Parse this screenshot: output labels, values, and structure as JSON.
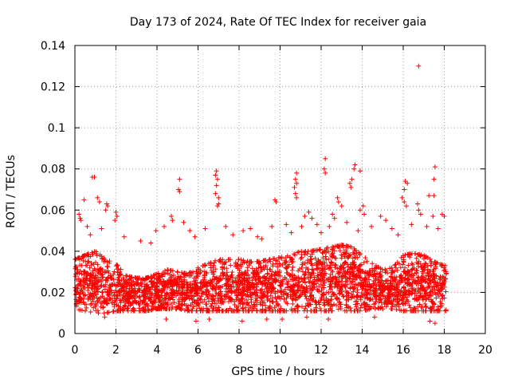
{
  "chart_data": {
    "type": "scatter",
    "title": "Day 173 of 2024, Rate Of TEC Index for receiver gaia",
    "xlabel": "GPS time / hours",
    "ylabel": "ROTI / TECUs",
    "xlim": [
      0,
      20
    ],
    "ylim": [
      0,
      0.14
    ],
    "xticks": [
      0,
      2,
      4,
      6,
      8,
      10,
      12,
      14,
      16,
      18,
      20
    ],
    "yticks": [
      0,
      0.02,
      0.04,
      0.06,
      0.08,
      0.1,
      0.12,
      0.14
    ],
    "xtick_labels": [
      "0",
      "2",
      "4",
      "6",
      "8",
      "10",
      "12",
      "14",
      "16",
      "18",
      "20"
    ],
    "ytick_labels": [
      "0",
      "0.02",
      "0.04",
      "0.06",
      "0.08",
      "0.1",
      "0.12",
      "0.14"
    ],
    "grid": true,
    "legend": "none",
    "marker": "+",
    "color": "#ff0000",
    "data_extent_x": [
      0,
      18.1
    ],
    "band_envelope": {
      "x": [
        0,
        0.5,
        1,
        1.5,
        2,
        2.5,
        3,
        3.5,
        4,
        4.5,
        5,
        5.5,
        6,
        6.5,
        7,
        7.5,
        8,
        8.5,
        9,
        9.5,
        10,
        10.5,
        11,
        11.5,
        12,
        12.5,
        13,
        13.5,
        14,
        14.5,
        15,
        15.5,
        16,
        16.5,
        17,
        17.5,
        18
      ],
      "low": [
        0.012,
        0.011,
        0.01,
        0.01,
        0.011,
        0.011,
        0.011,
        0.011,
        0.012,
        0.012,
        0.012,
        0.011,
        0.011,
        0.011,
        0.011,
        0.011,
        0.011,
        0.011,
        0.011,
        0.011,
        0.011,
        0.011,
        0.011,
        0.011,
        0.011,
        0.011,
        0.011,
        0.011,
        0.011,
        0.012,
        0.012,
        0.012,
        0.011,
        0.011,
        0.011,
        0.011,
        0.011
      ],
      "high": [
        0.036,
        0.038,
        0.04,
        0.036,
        0.034,
        0.028,
        0.027,
        0.027,
        0.029,
        0.031,
        0.03,
        0.029,
        0.032,
        0.034,
        0.036,
        0.036,
        0.036,
        0.035,
        0.035,
        0.036,
        0.037,
        0.038,
        0.04,
        0.04,
        0.041,
        0.042,
        0.043,
        0.042,
        0.038,
        0.034,
        0.031,
        0.032,
        0.038,
        0.039,
        0.038,
        0.035,
        0.033
      ]
    },
    "points": [
      {
        "x": 16.75,
        "y": 0.13
      },
      {
        "x": 12.2,
        "y": 0.085
      },
      {
        "x": 12.15,
        "y": 0.08
      },
      {
        "x": 12.2,
        "y": 0.078
      },
      {
        "x": 13.65,
        "y": 0.082
      },
      {
        "x": 13.6,
        "y": 0.08
      },
      {
        "x": 13.9,
        "y": 0.079
      },
      {
        "x": 17.55,
        "y": 0.081
      },
      {
        "x": 17.5,
        "y": 0.075
      },
      {
        "x": 6.9,
        "y": 0.079
      },
      {
        "x": 6.85,
        "y": 0.077
      },
      {
        "x": 6.95,
        "y": 0.075
      },
      {
        "x": 6.9,
        "y": 0.072
      },
      {
        "x": 10.8,
        "y": 0.078
      },
      {
        "x": 10.75,
        "y": 0.075
      },
      {
        "x": 10.8,
        "y": 0.073
      },
      {
        "x": 0.85,
        "y": 0.076
      },
      {
        "x": 0.95,
        "y": 0.076
      },
      {
        "x": 5.1,
        "y": 0.075
      },
      {
        "x": 5.05,
        "y": 0.07
      },
      {
        "x": 5.1,
        "y": 0.069
      },
      {
        "x": 16.1,
        "y": 0.074
      },
      {
        "x": 16.2,
        "y": 0.073
      },
      {
        "x": 16.05,
        "y": 0.07
      },
      {
        "x": 13.4,
        "y": 0.073
      },
      {
        "x": 13.45,
        "y": 0.071
      },
      {
        "x": 13.5,
        "y": 0.075
      },
      {
        "x": 10.7,
        "y": 0.071
      },
      {
        "x": 10.75,
        "y": 0.068
      },
      {
        "x": 10.8,
        "y": 0.066
      },
      {
        "x": 6.85,
        "y": 0.068
      },
      {
        "x": 7.0,
        "y": 0.066
      },
      {
        "x": 7.0,
        "y": 0.063
      },
      {
        "x": 6.95,
        "y": 0.062
      },
      {
        "x": 17.25,
        "y": 0.067
      },
      {
        "x": 17.5,
        "y": 0.067
      },
      {
        "x": 1.1,
        "y": 0.066
      },
      {
        "x": 1.2,
        "y": 0.064
      },
      {
        "x": 0.45,
        "y": 0.065
      },
      {
        "x": 1.55,
        "y": 0.063
      },
      {
        "x": 1.6,
        "y": 0.062
      },
      {
        "x": 1.5,
        "y": 0.06
      },
      {
        "x": 9.75,
        "y": 0.065
      },
      {
        "x": 9.8,
        "y": 0.064
      },
      {
        "x": 12.8,
        "y": 0.066
      },
      {
        "x": 12.85,
        "y": 0.064
      },
      {
        "x": 13.0,
        "y": 0.062
      },
      {
        "x": 15.95,
        "y": 0.066
      },
      {
        "x": 16.05,
        "y": 0.064
      },
      {
        "x": 16.15,
        "y": 0.062
      },
      {
        "x": 16.7,
        "y": 0.063
      },
      {
        "x": 16.75,
        "y": 0.06
      },
      {
        "x": 14.05,
        "y": 0.062
      },
      {
        "x": 13.9,
        "y": 0.06
      },
      {
        "x": 14.1,
        "y": 0.058
      },
      {
        "x": 0.2,
        "y": 0.058
      },
      {
        "x": 0.25,
        "y": 0.056
      },
      {
        "x": 0.3,
        "y": 0.055
      },
      {
        "x": 2.0,
        "y": 0.059
      },
      {
        "x": 2.05,
        "y": 0.057
      },
      {
        "x": 1.95,
        "y": 0.055
      },
      {
        "x": 4.7,
        "y": 0.057
      },
      {
        "x": 4.75,
        "y": 0.055
      },
      {
        "x": 5.3,
        "y": 0.054
      },
      {
        "x": 11.2,
        "y": 0.057
      },
      {
        "x": 11.4,
        "y": 0.059
      },
      {
        "x": 11.55,
        "y": 0.056
      },
      {
        "x": 12.55,
        "y": 0.058
      },
      {
        "x": 12.65,
        "y": 0.056
      },
      {
        "x": 14.9,
        "y": 0.057
      },
      {
        "x": 15.15,
        "y": 0.055
      },
      {
        "x": 16.85,
        "y": 0.058
      },
      {
        "x": 17.9,
        "y": 0.058
      },
      {
        "x": 18.0,
        "y": 0.057
      },
      {
        "x": 17.45,
        "y": 0.057
      },
      {
        "x": 0.6,
        "y": 0.052
      },
      {
        "x": 1.3,
        "y": 0.051
      },
      {
        "x": 3.95,
        "y": 0.05
      },
      {
        "x": 4.35,
        "y": 0.052
      },
      {
        "x": 5.6,
        "y": 0.05
      },
      {
        "x": 6.35,
        "y": 0.051
      },
      {
        "x": 7.35,
        "y": 0.052
      },
      {
        "x": 8.2,
        "y": 0.05
      },
      {
        "x": 8.55,
        "y": 0.051
      },
      {
        "x": 9.6,
        "y": 0.052
      },
      {
        "x": 10.3,
        "y": 0.053
      },
      {
        "x": 11.05,
        "y": 0.052
      },
      {
        "x": 11.8,
        "y": 0.053
      },
      {
        "x": 12.4,
        "y": 0.052
      },
      {
        "x": 13.25,
        "y": 0.054
      },
      {
        "x": 14.45,
        "y": 0.052
      },
      {
        "x": 15.45,
        "y": 0.051
      },
      {
        "x": 16.4,
        "y": 0.053
      },
      {
        "x": 17.15,
        "y": 0.052
      },
      {
        "x": 17.7,
        "y": 0.051
      },
      {
        "x": 2.4,
        "y": 0.047
      },
      {
        "x": 3.2,
        "y": 0.045
      },
      {
        "x": 3.7,
        "y": 0.044
      },
      {
        "x": 8.9,
        "y": 0.047
      },
      {
        "x": 9.1,
        "y": 0.046
      },
      {
        "x": 10.55,
        "y": 0.049
      },
      {
        "x": 13.8,
        "y": 0.05
      },
      {
        "x": 15.75,
        "y": 0.048
      },
      {
        "x": 0.75,
        "y": 0.048
      },
      {
        "x": 5.85,
        "y": 0.047
      },
      {
        "x": 7.7,
        "y": 0.048
      },
      {
        "x": 12.0,
        "y": 0.049
      },
      {
        "x": 4.45,
        "y": 0.007
      },
      {
        "x": 5.9,
        "y": 0.006
      },
      {
        "x": 8.15,
        "y": 0.006
      },
      {
        "x": 9.35,
        "y": 0.007
      },
      {
        "x": 10.1,
        "y": 0.007
      },
      {
        "x": 12.35,
        "y": 0.007
      },
      {
        "x": 14.6,
        "y": 0.008
      },
      {
        "x": 17.3,
        "y": 0.006
      },
      {
        "x": 17.55,
        "y": 0.005
      },
      {
        "x": 1.45,
        "y": 0.008
      },
      {
        "x": 6.55,
        "y": 0.007
      },
      {
        "x": 11.3,
        "y": 0.008
      }
    ]
  }
}
